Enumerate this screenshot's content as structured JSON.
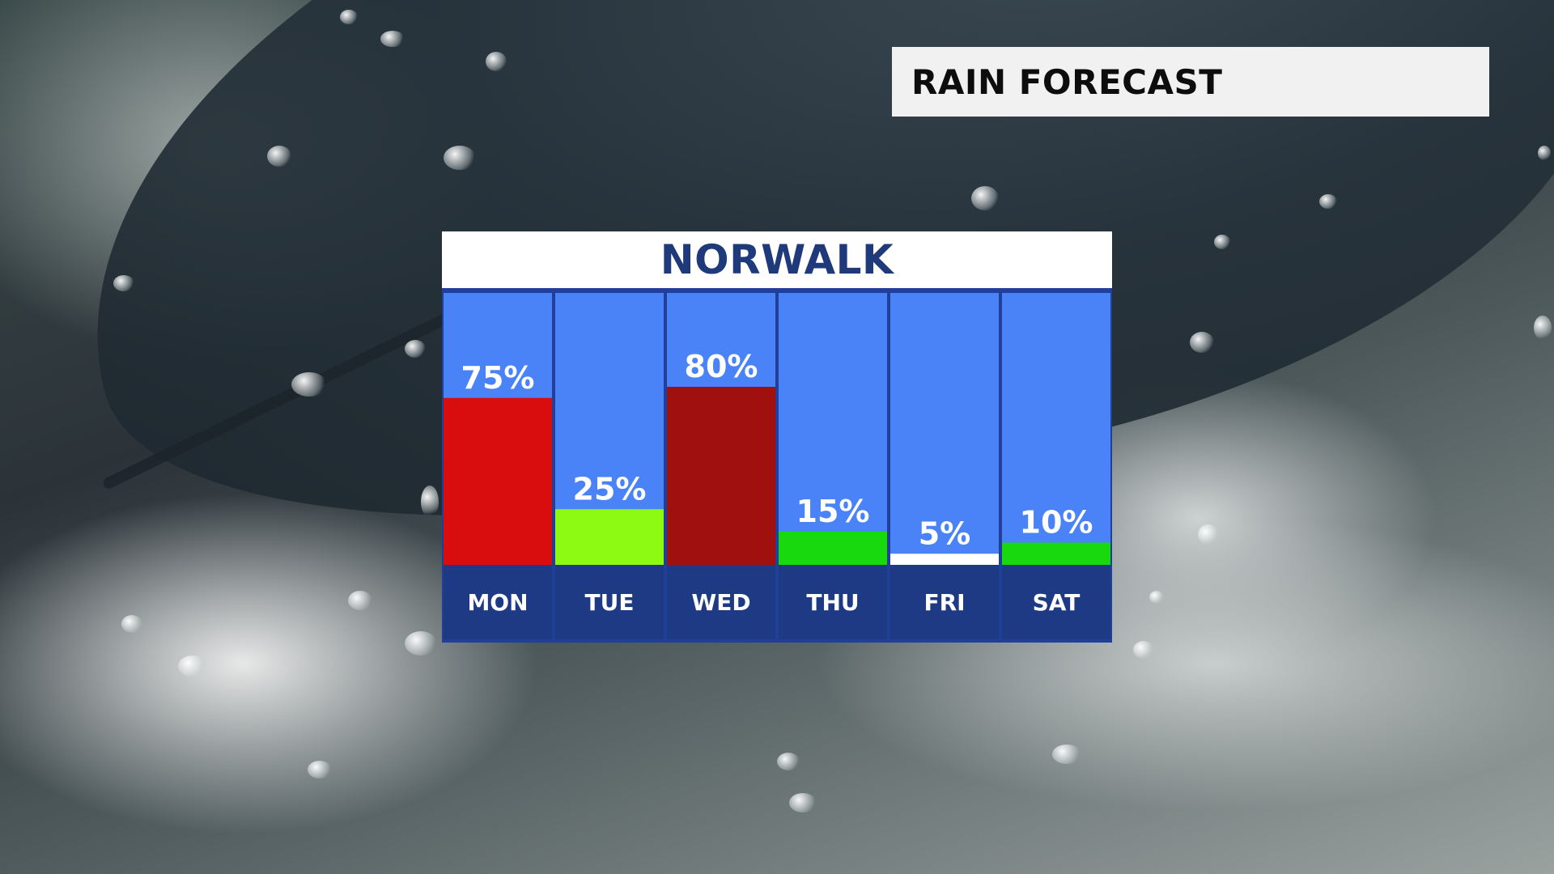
{
  "header": {
    "title": "RAIN FORECAST"
  },
  "chart_data": {
    "type": "bar",
    "title": "NORWALK",
    "categories": [
      "MON",
      "TUE",
      "WED",
      "THU",
      "FRI",
      "SAT"
    ],
    "values": [
      75,
      25,
      80,
      15,
      5,
      10
    ],
    "labels": [
      "75%",
      "25%",
      "80%",
      "15%",
      "5%",
      "10%"
    ],
    "bar_colors": [
      "#d90d0d",
      "#8dfa14",
      "#a0100f",
      "#18d90e",
      "#ffffff",
      "#18d90e"
    ],
    "ylim": [
      0,
      100
    ],
    "xlabel": "",
    "ylabel": "",
    "grid": false,
    "legend": "none",
    "colors": {
      "column_bg": "#4a82f7",
      "day_band": "#1f3a85",
      "divider": "#1f3f99",
      "header_bg": "#ffffff",
      "title_text": "#1e3a7b"
    }
  }
}
